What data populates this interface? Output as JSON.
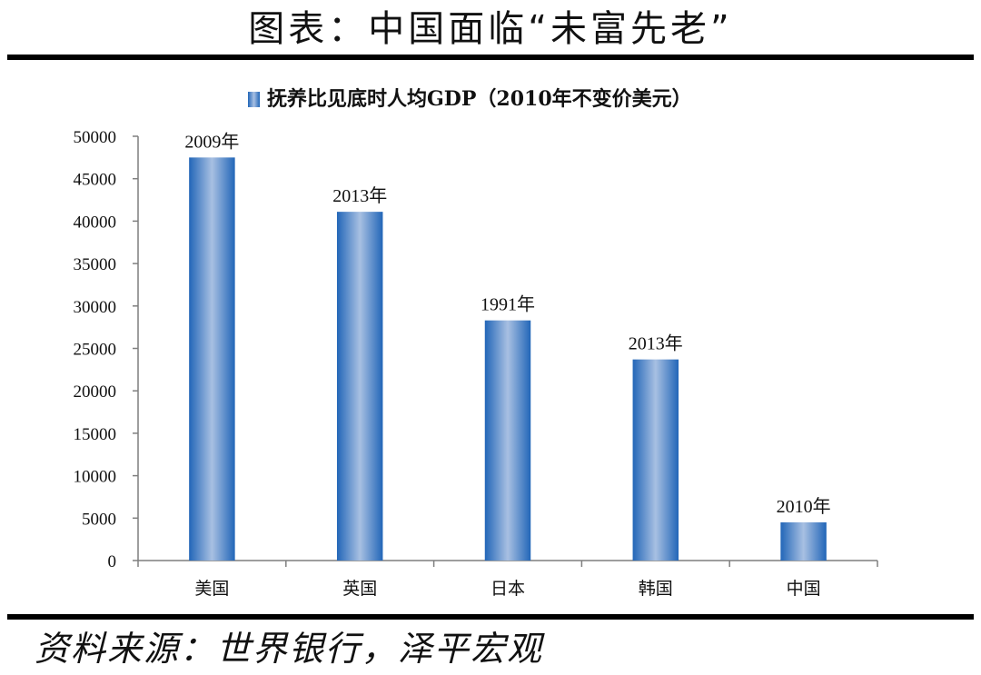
{
  "page": {
    "title": "图表：中国面临“未富先老”",
    "source": "资料来源：世界银行，泽平宏观"
  },
  "chart_data": {
    "type": "bar",
    "legend": "抚养比见底时人均GDP（2010年不变价美元）",
    "legend_position": "top-center",
    "categories": [
      "美国",
      "英国",
      "日本",
      "韩国",
      "中国"
    ],
    "values": [
      47500,
      41100,
      28300,
      23700,
      4500
    ],
    "data_labels": [
      "2009年",
      "2013年",
      "1991年",
      "2013年",
      "2010年"
    ],
    "ylim": [
      0,
      50000
    ],
    "yticks": [
      0,
      5000,
      10000,
      15000,
      20000,
      25000,
      30000,
      35000,
      40000,
      45000,
      50000
    ],
    "grid": false,
    "colors": {
      "bar_edge": "#2266b8",
      "bar_center": "#a8c0e2",
      "axis": "#7f7f7f"
    }
  }
}
